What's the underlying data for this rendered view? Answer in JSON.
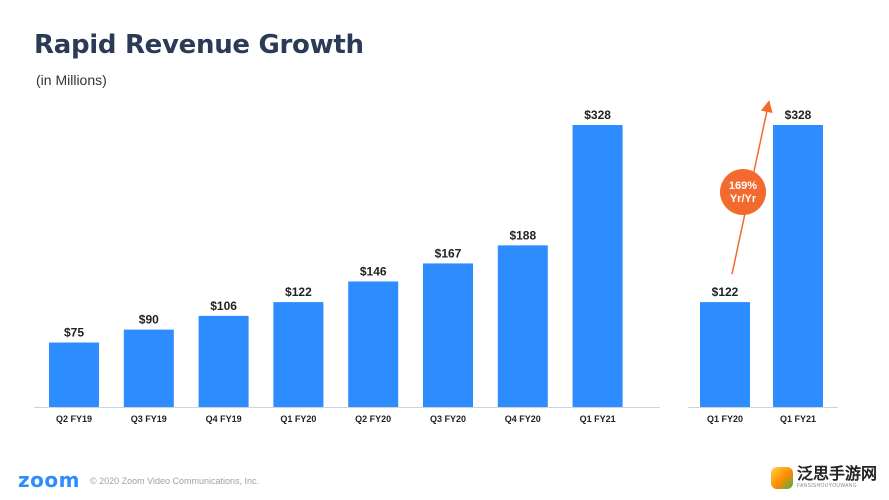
{
  "slide": {
    "title": "Rapid Revenue Growth",
    "subtitle": "(in Millions)"
  },
  "chart_data": [
    {
      "type": "bar",
      "categories": [
        "Q2 FY19",
        "Q3 FY19",
        "Q4 FY19",
        "Q1 FY20",
        "Q2 FY20",
        "Q3 FY20",
        "Q4 FY20",
        "Q1 FY21"
      ],
      "values": [
        75,
        90,
        106,
        122,
        146,
        167,
        188,
        328
      ],
      "data_labels": [
        "$75",
        "$90",
        "$106",
        "$122",
        "$146",
        "$167",
        "$188",
        "$328"
      ],
      "title": "",
      "xlabel": "",
      "ylabel": "",
      "ylim": [
        0,
        328
      ],
      "grid": false,
      "bar_color": "#2d8cff"
    },
    {
      "type": "bar",
      "categories": [
        "Q1 FY20",
        "Q1 FY21"
      ],
      "values": [
        122,
        328
      ],
      "data_labels": [
        "$122",
        "$328"
      ],
      "title": "",
      "xlabel": "",
      "ylabel": "",
      "ylim": [
        0,
        328
      ],
      "grid": false,
      "bar_color": "#2d8cff",
      "annotation": {
        "line1": "169%",
        "line2": "Yr/Yr",
        "color": "#f26a2e"
      }
    }
  ],
  "footer": {
    "logo": "zoom",
    "copyright": "© 2020 Zoom Video Communications, Inc.",
    "watermark_text": "泛思手游网",
    "watermark_sub": "FANSISHOUYOUWANG"
  },
  "colors": {
    "accent": "#2d8cff",
    "title": "#2b3a55",
    "badge": "#f26a2e"
  }
}
